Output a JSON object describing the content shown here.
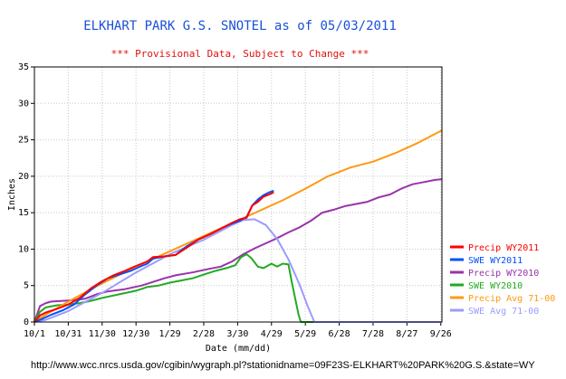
{
  "title": "ELKHART PARK G.S. SNOTEL as of 05/03/2011",
  "subtitle": "*** Provisional Data, Subject to Change ***",
  "source_url": "http://www.wcc.nrcs.usda.gov/cgibin/wygraph.pl?stationidname=09F23S-ELKHART%20PARK%20G.S.&state=WY",
  "chart_data": {
    "type": "line",
    "xlabel": "Date (mm/dd)",
    "ylabel": "Inches",
    "xlim": [
      0,
      361
    ],
    "ylim": [
      0,
      35
    ],
    "yticks": [
      0,
      5,
      10,
      15,
      20,
      25,
      30,
      35
    ],
    "xticks": [
      {
        "x": 0,
        "label": "10/1"
      },
      {
        "x": 30,
        "label": "10/31"
      },
      {
        "x": 60,
        "label": "11/30"
      },
      {
        "x": 90,
        "label": "12/30"
      },
      {
        "x": 120,
        "label": "1/29"
      },
      {
        "x": 150,
        "label": "2/28"
      },
      {
        "x": 180,
        "label": "3/30"
      },
      {
        "x": 210,
        "label": "4/29"
      },
      {
        "x": 240,
        "label": "5/29"
      },
      {
        "x": 270,
        "label": "6/28"
      },
      {
        "x": 300,
        "label": "7/28"
      },
      {
        "x": 330,
        "label": "8/27"
      },
      {
        "x": 360,
        "label": "9/26"
      }
    ],
    "grid": true,
    "legend_position": "right",
    "series": [
      {
        "name": "Precip WY2011",
        "color": "#ff0000",
        "points": [
          [
            0,
            0
          ],
          [
            5,
            0.9
          ],
          [
            10,
            1.3
          ],
          [
            20,
            1.8
          ],
          [
            30,
            2.4
          ],
          [
            40,
            3.3
          ],
          [
            50,
            4.6
          ],
          [
            60,
            5.6
          ],
          [
            70,
            6.4
          ],
          [
            80,
            7.0
          ],
          [
            90,
            7.7
          ],
          [
            100,
            8.3
          ],
          [
            105,
            8.9
          ],
          [
            115,
            9.0
          ],
          [
            125,
            9.2
          ],
          [
            135,
            10.2
          ],
          [
            145,
            11.3
          ],
          [
            155,
            12.0
          ],
          [
            165,
            12.8
          ],
          [
            175,
            13.6
          ],
          [
            182,
            14.1
          ],
          [
            188,
            14.3
          ],
          [
            193,
            16.0
          ],
          [
            198,
            16.5
          ],
          [
            203,
            17.2
          ],
          [
            208,
            17.5
          ],
          [
            212,
            17.8
          ]
        ]
      },
      {
        "name": "SWE WY2011",
        "color": "#0050ff",
        "points": [
          [
            0,
            0
          ],
          [
            5,
            0.3
          ],
          [
            15,
            1.0
          ],
          [
            25,
            1.6
          ],
          [
            35,
            2.4
          ],
          [
            45,
            3.8
          ],
          [
            55,
            5.0
          ],
          [
            65,
            6.0
          ],
          [
            75,
            6.5
          ],
          [
            85,
            7.0
          ],
          [
            95,
            7.7
          ],
          [
            100,
            8.0
          ],
          [
            105,
            8.7
          ],
          [
            115,
            9.0
          ],
          [
            125,
            9.2
          ],
          [
            135,
            10.4
          ],
          [
            145,
            11.3
          ],
          [
            155,
            12.0
          ],
          [
            165,
            12.8
          ],
          [
            175,
            13.5
          ],
          [
            182,
            13.9
          ],
          [
            188,
            14.4
          ],
          [
            193,
            16.0
          ],
          [
            198,
            16.8
          ],
          [
            203,
            17.4
          ],
          [
            208,
            17.8
          ],
          [
            212,
            18.0
          ]
        ]
      },
      {
        "name": "Precip WY2010",
        "color": "#9933aa",
        "points": [
          [
            0,
            0
          ],
          [
            5,
            2.2
          ],
          [
            10,
            2.6
          ],
          [
            15,
            2.8
          ],
          [
            25,
            2.9
          ],
          [
            35,
            3.0
          ],
          [
            45,
            3.2
          ],
          [
            55,
            3.8
          ],
          [
            65,
            4.2
          ],
          [
            80,
            4.5
          ],
          [
            95,
            5.0
          ],
          [
            105,
            5.5
          ],
          [
            115,
            6.0
          ],
          [
            125,
            6.4
          ],
          [
            140,
            6.8
          ],
          [
            155,
            7.3
          ],
          [
            165,
            7.6
          ],
          [
            175,
            8.3
          ],
          [
            185,
            9.3
          ],
          [
            195,
            10.1
          ],
          [
            205,
            10.8
          ],
          [
            215,
            11.5
          ],
          [
            225,
            12.3
          ],
          [
            235,
            13.0
          ],
          [
            245,
            13.9
          ],
          [
            255,
            15.0
          ],
          [
            265,
            15.4
          ],
          [
            275,
            15.9
          ],
          [
            285,
            16.2
          ],
          [
            295,
            16.5
          ],
          [
            305,
            17.1
          ],
          [
            315,
            17.5
          ],
          [
            325,
            18.3
          ],
          [
            335,
            18.9
          ],
          [
            345,
            19.2
          ],
          [
            355,
            19.5
          ],
          [
            361,
            19.6
          ]
        ]
      },
      {
        "name": "SWE WY2010",
        "color": "#22aa22",
        "points": [
          [
            0,
            0
          ],
          [
            5,
            1.4
          ],
          [
            10,
            2.0
          ],
          [
            20,
            2.3
          ],
          [
            30,
            2.4
          ],
          [
            40,
            2.6
          ],
          [
            50,
            2.9
          ],
          [
            60,
            3.3
          ],
          [
            75,
            3.8
          ],
          [
            90,
            4.3
          ],
          [
            100,
            4.8
          ],
          [
            110,
            5.0
          ],
          [
            120,
            5.4
          ],
          [
            130,
            5.7
          ],
          [
            140,
            6.0
          ],
          [
            150,
            6.5
          ],
          [
            160,
            7.0
          ],
          [
            170,
            7.4
          ],
          [
            178,
            7.8
          ],
          [
            183,
            8.9
          ],
          [
            188,
            9.3
          ],
          [
            192,
            8.8
          ],
          [
            198,
            7.6
          ],
          [
            203,
            7.4
          ],
          [
            210,
            8.0
          ],
          [
            215,
            7.6
          ],
          [
            220,
            8.0
          ],
          [
            225,
            7.9
          ],
          [
            228,
            5.5
          ],
          [
            231,
            3.2
          ],
          [
            234,
            1.0
          ],
          [
            236,
            0
          ],
          [
            361,
            0
          ]
        ]
      },
      {
        "name": "Precip Avg 71-00",
        "color": "#ff9911",
        "points": [
          [
            0,
            0
          ],
          [
            10,
            1.0
          ],
          [
            30,
            2.8
          ],
          [
            60,
            5.3
          ],
          [
            90,
            7.6
          ],
          [
            120,
            9.7
          ],
          [
            150,
            11.8
          ],
          [
            180,
            13.9
          ],
          [
            200,
            15.3
          ],
          [
            220,
            16.7
          ],
          [
            240,
            18.3
          ],
          [
            260,
            20.0
          ],
          [
            280,
            21.2
          ],
          [
            300,
            22.0
          ],
          [
            320,
            23.2
          ],
          [
            340,
            24.6
          ],
          [
            361,
            26.3
          ]
        ]
      },
      {
        "name": "SWE Avg 71-00",
        "color": "#9b9bff",
        "points": [
          [
            0,
            0
          ],
          [
            10,
            0.3
          ],
          [
            30,
            1.5
          ],
          [
            60,
            4.0
          ],
          [
            90,
            6.8
          ],
          [
            120,
            9.3
          ],
          [
            150,
            11.3
          ],
          [
            175,
            13.3
          ],
          [
            185,
            14.0
          ],
          [
            195,
            14.1
          ],
          [
            205,
            13.3
          ],
          [
            215,
            11.4
          ],
          [
            225,
            8.6
          ],
          [
            235,
            5.1
          ],
          [
            242,
            2.2
          ],
          [
            248,
            0
          ],
          [
            361,
            0
          ]
        ]
      }
    ]
  }
}
